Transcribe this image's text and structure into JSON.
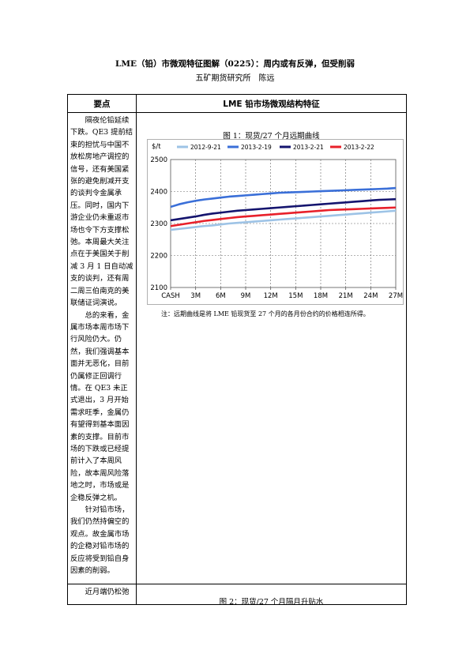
{
  "doc": {
    "title": "LME（铅）市微观特征图解（0225）：周内或有反弹，但受削弱",
    "author": "五矿期货研究所　陈远"
  },
  "table": {
    "header_left": "要点",
    "header_right": "LME 铅市场微观结构特征",
    "left_paragraphs": [
      "隔夜伦铅延续下跌。QE3 提前结束的担忧与中国不放松房地产调控的信号，还有美国紧张的避免削减开支的谈判令金属承压。同时，国内下游企业仍未重返市场也令下方支撑松弛。本周最大关注点在于美国关于削减 3 月 1 日自动减支的谈判，还有周二周三伯南克的美联储证词演说。",
      "总的来看，金属市场本周市场下行风险仍大。仍然，我们强调基本面并无恶化，目前仍属修正回调行情。在 QE3 未正式退出，3 月开始需求旺季，金属仍有望得到基本面因素的支撑。目前市场的下跌或已经提前计入了本周风险，故本周风险落地之时，市场或是企稳反弹之机。",
      "针对铅市场，我们仍然持偏空的观点。故金属市场的企稳对铅市场的反应将受到铅自身因素的削弱。"
    ],
    "row2_left": "近月端仍松弛",
    "figure1_caption": "图 1：现货/27 个月远期曲线",
    "figure1_note": "注：远期曲线是将 LME 铅现货至 27 个月的各月份合约的价格相连所得。",
    "figure2_caption": "图 2：现货/27 个月隔月升贴水"
  },
  "chart_data": {
    "type": "line",
    "title": "",
    "ylabel": "$/t",
    "xlabel": "",
    "ylim": [
      2100,
      2500
    ],
    "yticks": [
      2100,
      2200,
      2300,
      2400,
      2500
    ],
    "xticklabels": [
      "CASH",
      "3M",
      "6M",
      "9M",
      "12M",
      "15M",
      "18M",
      "21M",
      "24M",
      "27M"
    ],
    "x": [
      0,
      1,
      2,
      3,
      4,
      5,
      6,
      7,
      8,
      9,
      10,
      11,
      12,
      13,
      14,
      15,
      16,
      17,
      18,
      19,
      20,
      21,
      22,
      23,
      24,
      25,
      26,
      27
    ],
    "grid": true,
    "legend": "top",
    "series": [
      {
        "name": "2012-9-21",
        "color": "#9dc3e6",
        "values": [
          2280,
          2283,
          2286,
          2289,
          2292,
          2294,
          2297,
          2300,
          2302,
          2304,
          2306,
          2308,
          2310,
          2312,
          2314,
          2316,
          2318,
          2320,
          2322,
          2324,
          2326,
          2328,
          2330,
          2332,
          2334,
          2336,
          2338,
          2340
        ]
      },
      {
        "name": "2013-2-19",
        "color": "#3a6fd8",
        "values": [
          2352,
          2360,
          2366,
          2371,
          2375,
          2378,
          2381,
          2384,
          2386,
          2388,
          2390,
          2392,
          2394,
          2396,
          2397,
          2398,
          2399,
          2400,
          2401,
          2402,
          2403,
          2404,
          2405,
          2406,
          2407,
          2408,
          2409,
          2411
        ]
      },
      {
        "name": "2013-2-21",
        "color": "#14146e",
        "values": [
          2310,
          2314,
          2318,
          2322,
          2327,
          2331,
          2334,
          2337,
          2340,
          2342,
          2344,
          2346,
          2348,
          2350,
          2352,
          2354,
          2356,
          2358,
          2360,
          2362,
          2364,
          2366,
          2368,
          2370,
          2372,
          2374,
          2375,
          2376
        ]
      },
      {
        "name": "2013-2-22",
        "color": "#e8202a",
        "values": [
          2292,
          2296,
          2300,
          2304,
          2308,
          2311,
          2314,
          2317,
          2320,
          2322,
          2324,
          2326,
          2328,
          2330,
          2332,
          2334,
          2336,
          2338,
          2340,
          2342,
          2343,
          2344,
          2345,
          2346,
          2347,
          2348,
          2349,
          2350
        ]
      }
    ]
  }
}
